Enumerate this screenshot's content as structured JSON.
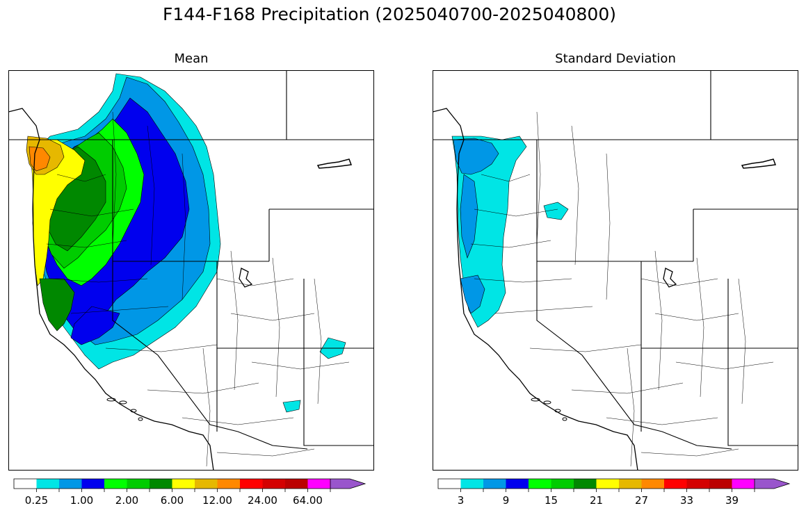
{
  "title": "F144-F168 Precipitation (2025040700-2025040800)",
  "panels": [
    {
      "title": "Mean",
      "colorbar": {
        "colors": [
          "#ffffff",
          "#00e5e5",
          "#0097e6",
          "#0000ee",
          "#00ff00",
          "#00cc00",
          "#008800",
          "#ffff00",
          "#e6b800",
          "#ff8800",
          "#ff0000",
          "#d40000",
          "#bb0000",
          "#ff00ff",
          "#9955cc"
        ],
        "tick_labels": [
          "0.25",
          "1.00",
          "2.00",
          "6.00",
          "12.00",
          "24.00",
          "64.00"
        ]
      }
    },
    {
      "title": "Standard Deviation",
      "colorbar": {
        "colors": [
          "#ffffff",
          "#00e5e5",
          "#0097e6",
          "#0000ee",
          "#00ff00",
          "#00cc00",
          "#008800",
          "#ffff00",
          "#e6b800",
          "#ff8800",
          "#ff0000",
          "#d40000",
          "#bb0000",
          "#ff00ff",
          "#9955cc"
        ],
        "tick_labels": [
          "3",
          "9",
          "15",
          "21",
          "27",
          "33",
          "39"
        ]
      }
    }
  ]
}
